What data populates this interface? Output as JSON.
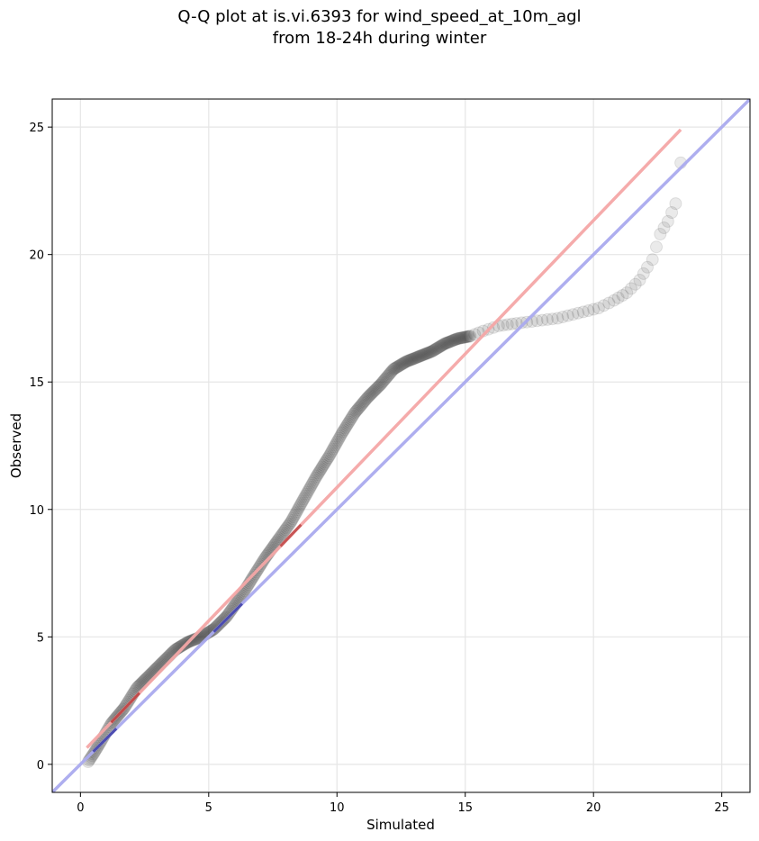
{
  "chart_data": {
    "type": "scatter",
    "title": "Q-Q plot at is.vi.6393 for wind_speed_at_10m_agl",
    "subtitle": "from 18-24h during winter",
    "xlabel": "Simulated",
    "ylabel": "Observed",
    "xlim": [
      -1.1,
      26.1
    ],
    "ylim": [
      -1.1,
      26.1
    ],
    "xticks": [
      0,
      5,
      10,
      15,
      20,
      25
    ],
    "yticks": [
      0,
      5,
      10,
      15,
      20,
      25
    ],
    "grid": true,
    "colors": {
      "points": "#333333",
      "identity_line": "#aaaaee",
      "fit_line": "#f4a6a6",
      "lower_fit_overlay": "#990000",
      "lower_identity_overlay": "#000080"
    },
    "identity_line": {
      "x": [
        -1.1,
        26.1
      ],
      "y": [
        -1.1,
        26.1
      ]
    },
    "fit_line": {
      "x": [
        0.25,
        23.4
      ],
      "y": [
        0.65,
        24.9
      ]
    },
    "quantile_anchors": {
      "x": [
        0.3,
        0.5,
        0.8,
        1.2,
        1.7,
        2.2,
        2.7,
        3.2,
        3.7,
        4.2,
        4.7,
        5.2,
        5.7,
        6.2,
        6.7,
        7.2,
        7.7,
        8.2,
        8.7,
        9.2,
        9.7,
        10.2,
        10.7,
        11.2,
        11.7,
        12.2,
        12.7,
        13.2,
        13.7,
        14.2,
        14.7,
        15.2,
        15.7,
        16.3,
        17.0,
        17.8,
        18.6,
        19.4,
        20.2,
        20.8,
        21.3,
        21.8,
        22.1,
        22.3,
        22.6,
        22.9,
        23.2,
        23.4
      ],
      "y": [
        0.1,
        0.4,
        0.9,
        1.6,
        2.2,
        3.0,
        3.5,
        4.0,
        4.5,
        4.8,
        5.0,
        5.3,
        5.8,
        6.5,
        7.3,
        8.1,
        8.8,
        9.5,
        10.4,
        11.3,
        12.1,
        13.0,
        13.8,
        14.4,
        14.9,
        15.5,
        15.8,
        16.0,
        16.2,
        16.5,
        16.7,
        16.8,
        17.0,
        17.2,
        17.3,
        17.4,
        17.5,
        17.7,
        17.9,
        18.2,
        18.5,
        19.0,
        19.5,
        19.8,
        20.8,
        21.3,
        22.0,
        23.6
      ]
    }
  }
}
